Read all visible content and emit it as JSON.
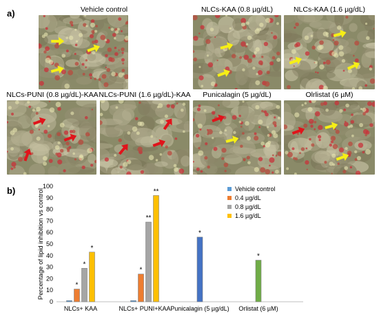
{
  "figure": {
    "panel_a_label": "a)",
    "panel_b_label": "b)"
  },
  "micrographs": [
    {
      "title": "Vehicle control",
      "arrow_color": "#f6ef16",
      "arrows": 3,
      "stain_density": 0.55
    },
    {
      "title": "NLCs-KAA (0.8 µg/dL)",
      "arrow_color": "#f6ef16",
      "arrows": 2,
      "stain_density": 0.35
    },
    {
      "title": "NLCs-KAA (1.6 µg/dL)",
      "arrow_color": "#f6ef16",
      "arrows": 3,
      "stain_density": 0.25
    },
    {
      "title": "NLCs-PUNI (0.8 µg/dL)-KAA",
      "arrow_color": "#e0141b",
      "arrows": 3,
      "stain_density": 0.35
    },
    {
      "title": "NLCs-PUNI (1.6 µg/dL)-KAA",
      "arrow_color": "#e0141b",
      "arrows": 3,
      "stain_density": 0.15
    },
    {
      "title": "Punicalagin (5 µg/dL)",
      "arrow_color": "#e0141b",
      "arrows": 2,
      "stain_density": 0.45,
      "extra_arrow_color": "#f6ef16"
    },
    {
      "title": "Olrlistat (6 µM)",
      "arrow_color": "#e0141b",
      "arrows": 3,
      "stain_density": 0.5,
      "extra_arrow_color": "#f6ef16"
    }
  ],
  "chart_data": {
    "type": "bar",
    "ylabel": "Percentage of lipid inhibition vs control",
    "ylim": [
      0,
      100
    ],
    "yticks": [
      0,
      10,
      20,
      30,
      40,
      50,
      60,
      70,
      80,
      90,
      100
    ],
    "grid": false,
    "legend_position": "top-right",
    "categories": [
      "NLCs+ KAA",
      "NLCs+ PUNI+KAA",
      "Punicalagin (5 µg/dL)",
      "Orlistat  (6 µM)"
    ],
    "series": [
      {
        "name": "Vehicle control",
        "color": "#5b9bd5",
        "values": [
          1,
          1,
          null,
          null
        ],
        "marks": [
          "",
          "",
          "",
          ""
        ]
      },
      {
        "name": "0.4 µg/dL",
        "color": "#ed7d31",
        "values": [
          11,
          24,
          null,
          null
        ],
        "marks": [
          "*",
          "*",
          "",
          ""
        ]
      },
      {
        "name": "0.8 µg/dL",
        "color": "#a5a5a5",
        "values": [
          29,
          69,
          null,
          null
        ],
        "marks": [
          "*",
          "**",
          "",
          ""
        ]
      },
      {
        "name": "1.6 µg/dL",
        "color": "#ffc000",
        "values": [
          43,
          92,
          null,
          null
        ],
        "marks": [
          "*",
          "**",
          "",
          ""
        ]
      }
    ],
    "single_bars": [
      {
        "category_index": 2,
        "value": 56,
        "color": "#4472c4",
        "mark": "*"
      },
      {
        "category_index": 3,
        "value": 36,
        "color": "#70ad47",
        "mark": "*"
      }
    ]
  }
}
